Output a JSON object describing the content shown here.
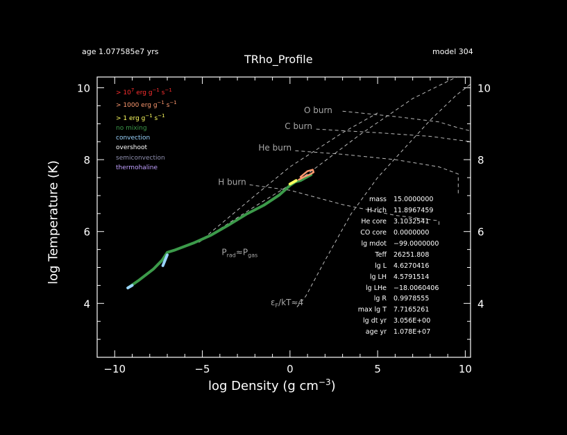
{
  "header": {
    "age_text": "age 1.077585e7 yrs",
    "model_text": "model 304",
    "title": "TRho_Profile"
  },
  "legend": [
    {
      "text": "> 10",
      "sup": "7",
      "rest": " erg g",
      "sup2": "−1",
      "rest2": " s",
      "sup3": "−1",
      "color": "#ff3030"
    },
    {
      "text": "> 1000 erg g",
      "sup": "−1",
      "rest": " s",
      "sup2": "−1",
      "rest2": "",
      "sup3": "",
      "color": "#ff9a70"
    },
    {
      "text": "> 1 erg g",
      "sup": "−1",
      "rest": " s",
      "sup2": "−1",
      "rest2": "",
      "sup3": "",
      "color": "#ffff60"
    },
    {
      "text": "no mixing",
      "sup": "",
      "rest": "",
      "sup2": "",
      "rest2": "",
      "sup3": "",
      "color": "#3c9a4a"
    },
    {
      "text": "convection",
      "sup": "",
      "rest": "",
      "sup2": "",
      "rest2": "",
      "sup3": "",
      "color": "#9ad4ff"
    },
    {
      "text": "overshoot",
      "sup": "",
      "rest": "",
      "sup2": "",
      "rest2": "",
      "sup3": "",
      "color": "#ffffff"
    },
    {
      "text": "semiconvection",
      "sup": "",
      "rest": "",
      "sup2": "",
      "rest2": "",
      "sup3": "",
      "color": "#9090b0"
    },
    {
      "text": "thermohaline",
      "sup": "",
      "rest": "",
      "sup2": "",
      "rest2": "",
      "sup3": "",
      "color": "#c0a0ff"
    }
  ],
  "info": [
    {
      "key": "mass",
      "value": "15.0000000"
    },
    {
      "key": "H rich",
      "value": "11.8967459"
    },
    {
      "key": "He core",
      "value": "3.1032541"
    },
    {
      "key": "CO core",
      "value": "0.0000000"
    },
    {
      "key": "lg mdot",
      "value": "−99.0000000"
    },
    {
      "key": "Teff",
      "value": "26251.808"
    },
    {
      "key": "lg L",
      "value": "4.6270416"
    },
    {
      "key": "lg LH",
      "value": "4.5791514"
    },
    {
      "key": "lg LHe",
      "value": "−18.0060406"
    },
    {
      "key": "lg R",
      "value": "0.9978555"
    },
    {
      "key": "max lg T",
      "value": "7.7165261"
    },
    {
      "key": "lg dt yr",
      "value": "3.056E+00"
    },
    {
      "key": "age yr",
      "value": "1.078E+07"
    }
  ],
  "chart_data": {
    "type": "line",
    "title": "TRho_Profile",
    "xlabel_main": "log Density (g cm",
    "xlabel_sup": "−3",
    "xlabel_end": ")",
    "ylabel": "log Temperature (K)",
    "xlim": [
      -11,
      10.3
    ],
    "ylim": [
      2.5,
      10.3
    ],
    "x_ticks": [
      -10,
      -5,
      0,
      5,
      10
    ],
    "x_tick_labels": [
      "−10",
      "−5",
      "0",
      "5",
      "10"
    ],
    "y_ticks": [
      4,
      6,
      8,
      10
    ],
    "y_tick_labels": [
      "4",
      "6",
      "8",
      "10"
    ],
    "annotations": [
      {
        "text": "O burn",
        "x": 0.8,
        "y": 9.3
      },
      {
        "text": "C burn",
        "x": -0.3,
        "y": 8.85
      },
      {
        "text": "He burn",
        "x": -1.8,
        "y": 8.25
      },
      {
        "text": "H burn",
        "x": -4.1,
        "y": 7.3
      },
      {
        "text_main": "P",
        "text_sub1": "rad",
        "text_mid": "≈P",
        "text_sub2": "gas",
        "x": -3.9,
        "y": 5.35
      },
      {
        "text_main": "ε",
        "text_sub1": "F",
        "text_mid": "/kT≈4",
        "text_sub2": "",
        "x": -1.1,
        "y": 3.95
      }
    ],
    "reference_lines": [
      {
        "name": "",
        "points": [
          [
            -5.2,
            5.7
          ],
          [
            -2,
            7.0
          ],
          [
            0,
            7.8
          ],
          [
            3,
            8.75
          ],
          [
            5,
            9.3
          ]
        ]
      },
      {
        "name": "",
        "points": [
          [
            -5.2,
            5.7
          ],
          [
            -2,
            6.7
          ],
          [
            1,
            7.6
          ],
          [
            4,
            8.7
          ],
          [
            7,
            9.7
          ],
          [
            9.5,
            10.3
          ]
        ]
      },
      {
        "name": "",
        "points": [
          [
            0.4,
            3.9
          ],
          [
            0.9,
            4.2
          ],
          [
            2,
            5.2
          ],
          [
            3.5,
            6.5
          ],
          [
            5,
            7.5
          ],
          [
            6.5,
            8.3
          ],
          [
            8,
            9.1
          ],
          [
            9.5,
            9.8
          ],
          [
            10.3,
            10.1
          ]
        ]
      },
      {
        "name": "",
        "points": [
          [
            3,
            9.35
          ],
          [
            6,
            9.2
          ],
          [
            8.5,
            9.05
          ],
          [
            9.5,
            8.9
          ],
          [
            10.3,
            8.8
          ]
        ]
      },
      {
        "name": "",
        "points": [
          [
            1.5,
            8.85
          ],
          [
            5,
            8.75
          ],
          [
            8,
            8.65
          ],
          [
            9.5,
            8.55
          ],
          [
            10.3,
            8.5
          ]
        ]
      },
      {
        "name": "",
        "points": [
          [
            0.3,
            8.25
          ],
          [
            3,
            8.15
          ],
          [
            6,
            8.0
          ],
          [
            8.5,
            7.8
          ],
          [
            9.6,
            7.6
          ],
          [
            9.6,
            7.05
          ]
        ]
      },
      {
        "name": "",
        "points": [
          [
            -2.3,
            7.3
          ],
          [
            0,
            7.15
          ],
          [
            3,
            6.75
          ],
          [
            6,
            6.45
          ],
          [
            8.5,
            6.3
          ],
          [
            8.5,
            6.15
          ]
        ]
      }
    ],
    "series": [
      {
        "name": "",
        "color": "#3c9a4a",
        "points": [
          [
            -9.25,
            4.43
          ],
          [
            -8.6,
            4.65
          ],
          [
            -7.8,
            4.95
          ],
          [
            -7.3,
            5.2
          ],
          [
            -7.0,
            5.42
          ],
          [
            -6.6,
            5.48
          ],
          [
            -5.5,
            5.68
          ],
          [
            -4.5,
            5.9
          ],
          [
            -3.5,
            6.18
          ],
          [
            -2.5,
            6.48
          ],
          [
            -1.5,
            6.73
          ],
          [
            -0.6,
            7.02
          ],
          [
            0.0,
            7.28
          ],
          [
            0.3,
            7.38
          ],
          [
            0.6,
            7.42
          ],
          [
            0.9,
            7.5
          ],
          [
            1.2,
            7.58
          ]
        ]
      },
      {
        "name": "",
        "color": "#9ad4ff",
        "points": [
          [
            -9.25,
            4.43
          ],
          [
            -9.0,
            4.5
          ]
        ]
      },
      {
        "name": "",
        "color": "#9ad4ff",
        "points": [
          [
            -7.25,
            5.05
          ],
          [
            -7.0,
            5.35
          ]
        ]
      },
      {
        "name": "",
        "color": "#ffff60",
        "points": [
          [
            0.0,
            7.32
          ],
          [
            0.35,
            7.42
          ]
        ]
      },
      {
        "name": "",
        "color": "#ff9a70",
        "points": [
          [
            0.5,
            7.44
          ],
          [
            0.8,
            7.52
          ],
          [
            1.1,
            7.58
          ],
          [
            1.35,
            7.65
          ],
          [
            1.3,
            7.72
          ],
          [
            1.0,
            7.68
          ],
          [
            0.8,
            7.6
          ],
          [
            0.6,
            7.52
          ]
        ]
      }
    ]
  }
}
